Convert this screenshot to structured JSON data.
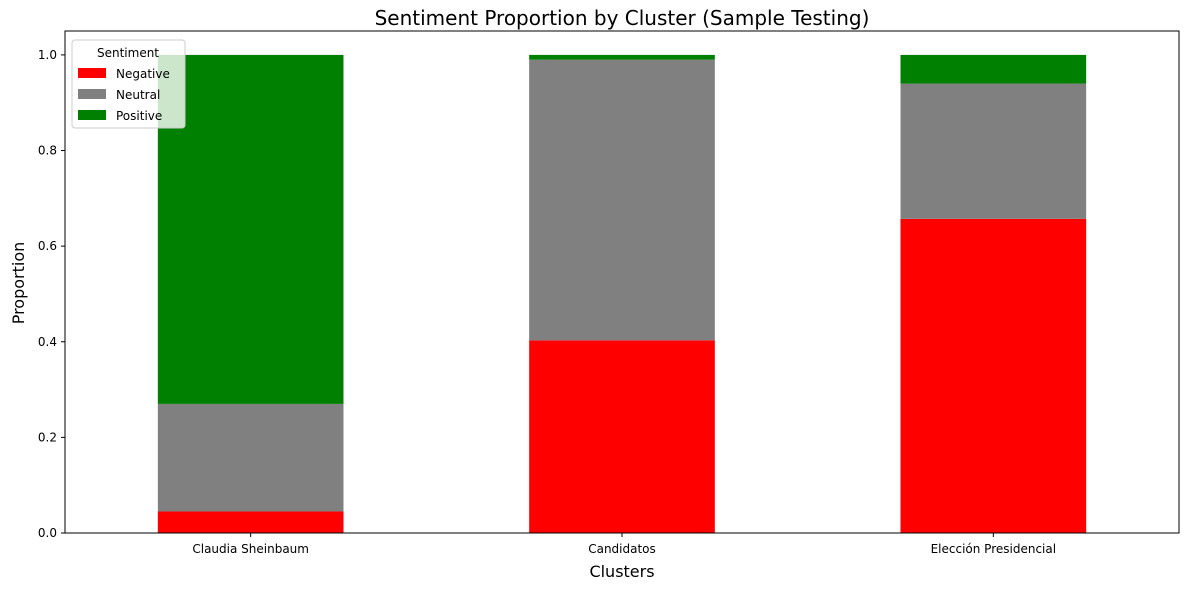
{
  "chart_data": {
    "type": "bar",
    "stacked": true,
    "title": "Sentiment Proportion by Cluster (Sample Testing)",
    "xlabel": "Clusters",
    "ylabel": "Proportion",
    "ylim": [
      0,
      1.05
    ],
    "yticks": [
      "0.0",
      "0.2",
      "0.4",
      "0.6",
      "0.8",
      "1.0"
    ],
    "ytick_values": [
      0,
      0.2,
      0.4,
      0.6,
      0.8,
      1.0
    ],
    "grid": false,
    "categories": [
      "Claudia Sheinbaum",
      "Candidatos",
      "Elección Presidencial"
    ],
    "series": [
      {
        "name": "Negative",
        "color": "#ff0000",
        "values": [
          0.045,
          0.403,
          0.657
        ]
      },
      {
        "name": "Neutral",
        "color": "#808080",
        "values": [
          0.225,
          0.587,
          0.283
        ]
      },
      {
        "name": "Positive",
        "color": "#008000",
        "values": [
          0.73,
          0.01,
          0.06
        ]
      }
    ],
    "legend": {
      "title": "Sentiment",
      "placement": "top-left"
    }
  }
}
